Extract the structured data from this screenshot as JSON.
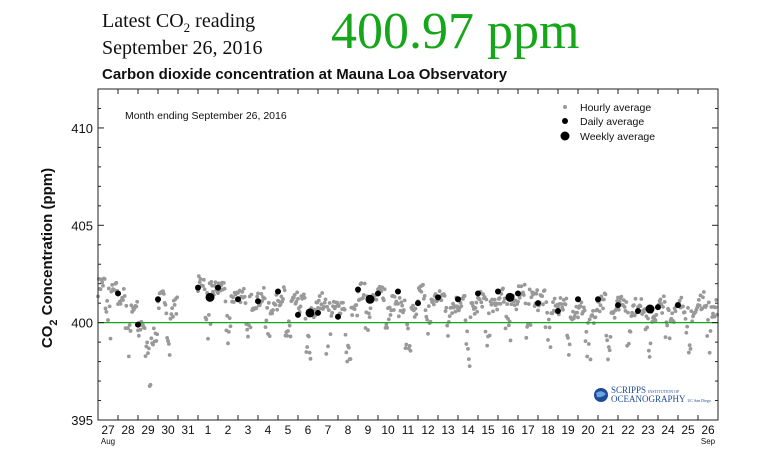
{
  "header": {
    "latest_prefix": "Latest CO",
    "latest_sub": "2",
    "latest_suffix": " reading",
    "date": "September 26, 2016",
    "value": "400.97 ppm",
    "title": "Carbon dioxide concentration at Mauna Loa Observatory"
  },
  "colors": {
    "accent": "#15a61a",
    "hourly": "#999999",
    "avg": "#000000",
    "logo": "#1e4a9a"
  },
  "logo": {
    "line1": "SCRIPPS",
    "line1b": "INSTITUTION OF",
    "line2": "OCEANOGRAPHY",
    "line2b": "UC San Diego"
  },
  "chart_data": {
    "type": "scatter",
    "annotation": "Month ending September 26, 2016",
    "ylabel_prefix": "CO",
    "ylabel_sub": "2",
    "ylabel_suffix": " Concentration (ppm)",
    "ylim": [
      395,
      412
    ],
    "yticks": [
      395,
      400,
      405,
      410
    ],
    "reference_line": 400,
    "x_tick_labels": [
      "27",
      "28",
      "29",
      "30",
      "31",
      "1",
      "2",
      "3",
      "4",
      "5",
      "6",
      "7",
      "8",
      "9",
      "10",
      "11",
      "12",
      "13",
      "14",
      "15",
      "16",
      "17",
      "18",
      "19",
      "20",
      "21",
      "22",
      "23",
      "24",
      "25",
      "26"
    ],
    "x_month_labels": [
      {
        "at": 0,
        "label": "Aug"
      },
      {
        "at": 30,
        "label": "Sep"
      }
    ],
    "legend": {
      "placement": "top-right",
      "entries": [
        "Hourly average",
        "Daily average",
        "Weekly average"
      ]
    },
    "hourly_daily_means": [
      401.8,
      401.1,
      399.5,
      401.0,
      null,
      401.9,
      401.6,
      401.3,
      401.1,
      401.2,
      400.8,
      400.9,
      400.7,
      401.4,
      401.3,
      400.7,
      401.4,
      401.1,
      400.9,
      401.0,
      401.2,
      401.5,
      401.0,
      400.8,
      400.5,
      400.9,
      401.0,
      400.6,
      400.7,
      400.7,
      400.9
    ],
    "daily": [
      {
        "x": 1.0,
        "y": 401.5
      },
      {
        "x": 2.0,
        "y": 399.9
      },
      {
        "x": 3.0,
        "y": 401.2
      },
      {
        "x": 5.0,
        "y": 401.8
      },
      {
        "x": 6.0,
        "y": 401.8
      },
      {
        "x": 7.0,
        "y": 401.2
      },
      {
        "x": 8.0,
        "y": 401.1
      },
      {
        "x": 9.0,
        "y": 401.6
      },
      {
        "x": 10.0,
        "y": 400.4
      },
      {
        "x": 11.0,
        "y": 400.5
      },
      {
        "x": 12.0,
        "y": 400.3
      },
      {
        "x": 13.0,
        "y": 401.7
      },
      {
        "x": 14.0,
        "y": 401.5
      },
      {
        "x": 15.0,
        "y": 401.6
      },
      {
        "x": 16.0,
        "y": 401.0
      },
      {
        "x": 17.0,
        "y": 401.3
      },
      {
        "x": 18.0,
        "y": 401.2
      },
      {
        "x": 19.0,
        "y": 401.5
      },
      {
        "x": 20.0,
        "y": 401.6
      },
      {
        "x": 21.0,
        "y": 401.5
      },
      {
        "x": 22.0,
        "y": 401.0
      },
      {
        "x": 23.0,
        "y": 400.6
      },
      {
        "x": 24.0,
        "y": 401.2
      },
      {
        "x": 25.0,
        "y": 401.2
      },
      {
        "x": 26.0,
        "y": 400.9
      },
      {
        "x": 27.0,
        "y": 400.6
      },
      {
        "x": 28.0,
        "y": 400.8
      },
      {
        "x": 29.0,
        "y": 400.9
      }
    ],
    "weekly": [
      {
        "x": 5.6,
        "y": 401.3
      },
      {
        "x": 10.6,
        "y": 400.5
      },
      {
        "x": 13.6,
        "y": 401.2
      },
      {
        "x": 20.6,
        "y": 401.3
      },
      {
        "x": 27.6,
        "y": 400.7
      }
    ]
  }
}
